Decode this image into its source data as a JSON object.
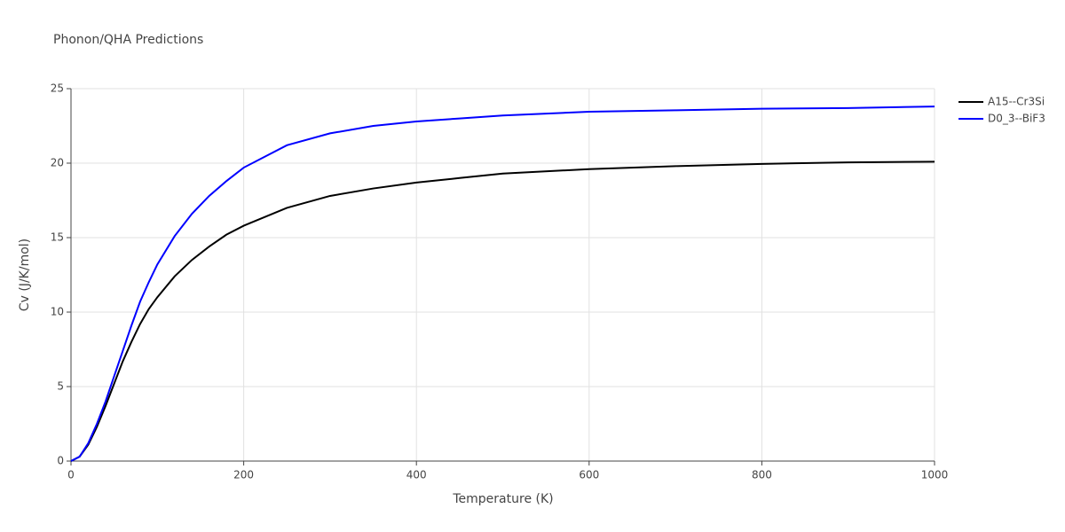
{
  "chart_data": {
    "type": "line",
    "title": "Phonon/QHA Predictions",
    "x_label": "Temperature (K)",
    "y_label": "Cv (J/K/mol)",
    "x": [
      0,
      10,
      20,
      30,
      40,
      50,
      60,
      70,
      80,
      90,
      100,
      120,
      140,
      160,
      180,
      200,
      250,
      300,
      350,
      400,
      450,
      500,
      600,
      700,
      800,
      900,
      1000
    ],
    "series": [
      {
        "name": "A15--Cr3Si",
        "color": "#000000",
        "values": [
          0,
          0.3,
          1.1,
          2.3,
          3.7,
          5.2,
          6.7,
          8.0,
          9.2,
          10.2,
          11.0,
          12.4,
          13.5,
          14.4,
          15.2,
          15.8,
          17.0,
          17.8,
          18.3,
          18.7,
          19.0,
          19.3,
          19.6,
          19.8,
          19.95,
          20.05,
          20.1
        ]
      },
      {
        "name": "D0_3--BiF3",
        "color": "#0000ff",
        "values": [
          0,
          0.3,
          1.2,
          2.5,
          4.0,
          5.7,
          7.4,
          9.1,
          10.7,
          12.0,
          13.2,
          15.1,
          16.6,
          17.8,
          18.8,
          19.7,
          21.2,
          22.0,
          22.5,
          22.8,
          23.0,
          23.2,
          23.45,
          23.55,
          23.65,
          23.7,
          23.8
        ]
      }
    ],
    "xlim": [
      0,
      1000
    ],
    "xticks": [
      0,
      200,
      400,
      600,
      800,
      1000
    ],
    "ylim": [
      0,
      25
    ],
    "yticks": [
      0,
      5,
      10,
      15,
      20,
      25
    ],
    "grid": true,
    "legend": "top-right"
  }
}
